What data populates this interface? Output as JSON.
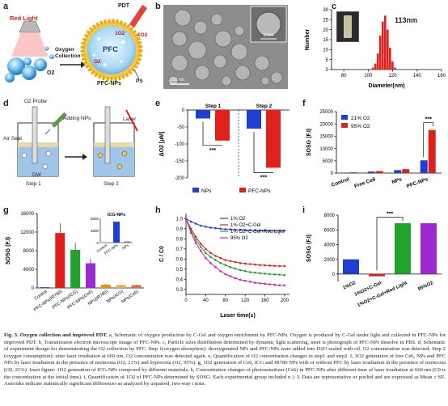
{
  "panels": {
    "a": {
      "letter": "a",
      "red_light": "Red Light",
      "pdt": "PDT",
      "pfc": "PFC",
      "o2": "O2",
      "singlet": "1O2",
      "oxygen_collection": "Oxygen\nCollection",
      "ps": "PS",
      "name": "PFC-NPs"
    },
    "b": {
      "letter": "b",
      "scale_main": "100 nm",
      "scale_inset": "67nm"
    },
    "c": {
      "letter": "c",
      "annotation": "113nm"
    },
    "d": {
      "letter": "d",
      "o2_probe": "O2 Probe",
      "adding_nps": "Adding NPs",
      "laser": "Laser",
      "air_seal": "Air Seal",
      "dw": "DW",
      "step1": "Step 1",
      "step2": "Step 2"
    },
    "e": {
      "letter": "e",
      "sig": "***"
    },
    "f": {
      "letter": "f",
      "sig": "***"
    },
    "g": {
      "letter": "g",
      "inset_title": "ICG-NPs"
    },
    "h": {
      "letter": "h"
    },
    "i": {
      "letter": "i",
      "sig": "***"
    }
  },
  "colors": {
    "blue": "#1f3fd4",
    "red": "#e0201b",
    "green": "#1fa32a",
    "purple": "#9b2bd0",
    "orange": "#f08a1c",
    "magenta": "#d11fb0"
  },
  "chart_data": [
    {
      "id": "c",
      "type": "bar",
      "xlabel": "Diameter(nm)",
      "ylabel": "Number",
      "xlim": [
        70,
        160
      ],
      "ylim": [
        0,
        30
      ],
      "xticks": [
        80,
        100,
        120,
        140,
        160
      ],
      "yticks": [
        0,
        5,
        10,
        15,
        20,
        25,
        30
      ],
      "x": [
        104,
        106,
        108,
        110,
        112,
        114,
        116,
        118,
        120,
        122
      ],
      "values": [
        1,
        3,
        8,
        17,
        24,
        27,
        20,
        11,
        4,
        1
      ]
    },
    {
      "id": "e",
      "type": "bar",
      "ylabel": "ΔO2 [µM]",
      "groups": [
        "Step 1",
        "Step 2"
      ],
      "ylim": [
        -200,
        0
      ],
      "yticks": [
        -200,
        -150,
        -100,
        -50,
        0
      ],
      "series": [
        {
          "name": "NPs",
          "values": [
            -25,
            -55
          ]
        },
        {
          "name": "PFC-NPs",
          "values": [
            -90,
            -170
          ]
        }
      ]
    },
    {
      "id": "f",
      "type": "bar",
      "ylabel": "SOSG (F.I)",
      "categories": [
        "Control",
        "Free Ce6",
        "NPs",
        "PFC-NPs"
      ],
      "ylim": [
        0,
        25000
      ],
      "yticks": [
        0,
        5000,
        10000,
        15000,
        20000,
        25000
      ],
      "series": [
        {
          "name": "21% O2",
          "values": [
            200,
            600,
            1200,
            5200
          ]
        },
        {
          "name": "95% O2",
          "values": [
            300,
            800,
            1600,
            17500
          ]
        }
      ]
    },
    {
      "id": "g",
      "type": "bar",
      "ylabel": "SOSG (F.I)",
      "categories": [
        "Control",
        "PFC-NPs(IR780)",
        "PFC-NPs(ICG)",
        "PFC-NPs(Ce6)",
        "NPs(IR780)",
        "NPs(ICG)",
        "NPs(Ce6)"
      ],
      "values": [
        150,
        11800,
        8200,
        5300,
        700,
        600,
        600
      ],
      "ylim": [
        0,
        16000
      ],
      "yticks": [
        0,
        4000,
        8000,
        12000,
        16000
      ]
    },
    {
      "id": "g_inset",
      "type": "bar",
      "title": "ICG-NPs",
      "categories": [
        "Control",
        "PFC-NPs",
        "NPs"
      ],
      "values": [
        100,
        6900,
        400
      ],
      "ylim": [
        0,
        8000
      ],
      "yticks": [
        0,
        4000,
        8000
      ]
    },
    {
      "id": "h",
      "type": "line",
      "xlabel": "Laser time(s)",
      "ylabel": "C / C0",
      "xlim": [
        0,
        210
      ],
      "ylim": [
        0.25,
        1.05
      ],
      "xticks": [
        0,
        40,
        80,
        120,
        160,
        200
      ],
      "yticks": [
        0.3,
        0.4,
        0.5,
        0.6,
        0.7,
        0.8,
        0.9,
        1.0
      ],
      "x": [
        0,
        10,
        20,
        30,
        40,
        50,
        60,
        70,
        80,
        90,
        100,
        110,
        120,
        130,
        140,
        150,
        160,
        170,
        180,
        190,
        200
      ],
      "series": [
        {
          "name": "1% O2",
          "values": [
            1.0,
            0.97,
            0.95,
            0.93,
            0.92,
            0.91,
            0.905,
            0.9,
            0.895,
            0.893,
            0.89,
            0.888,
            0.886,
            0.885,
            0.884,
            0.883,
            0.882,
            0.881,
            0.88,
            0.88,
            0.88
          ]
        },
        {
          "name": "1% O2+C-Gel",
          "values": [
            1.0,
            0.9,
            0.82,
            0.75,
            0.7,
            0.66,
            0.63,
            0.61,
            0.59,
            0.58,
            0.57,
            0.56,
            0.555,
            0.55,
            0.545,
            0.54,
            0.538,
            0.535,
            0.532,
            0.53,
            0.53
          ]
        },
        {
          "name": "1% O2+C-Gel+Red Light",
          "values": [
            1.0,
            0.88,
            0.79,
            0.72,
            0.66,
            0.62,
            0.59,
            0.56,
            0.54,
            0.52,
            0.505,
            0.49,
            0.48,
            0.47,
            0.465,
            0.46,
            0.455,
            0.45,
            0.448,
            0.445,
            0.44
          ]
        },
        {
          "name": "95% O2",
          "values": [
            1.0,
            0.86,
            0.76,
            0.68,
            0.61,
            0.56,
            0.52,
            0.48,
            0.45,
            0.43,
            0.41,
            0.395,
            0.385,
            0.375,
            0.365,
            0.36,
            0.355,
            0.35,
            0.345,
            0.34,
            0.34
          ]
        }
      ]
    },
    {
      "id": "i",
      "type": "bar",
      "ylabel": "SOSG (F.I)",
      "categories": [
        "1%O2",
        "1%O2+C-Gel",
        "1%O2+C-Gel+Red Light",
        "95%O2"
      ],
      "values": [
        2000,
        -300,
        6900,
        6900
      ],
      "ylim": [
        -1000,
        8000
      ],
      "yticks": [
        0,
        2000,
        4000,
        6000,
        8000
      ]
    }
  ],
  "caption": {
    "lead": "Fig. 3.",
    "title": "Oxygen collection and improved PDT.",
    "body": "a, Schematic of oxygen production by C-Gel and oxygen enrichment by PFC-NPs. Oxygen is produced by C-Gel under light and collected in PFC-NPs for improved PDT. b, Transmission electron microscope image of PFC-NPs. c, Particle sizes distribution determined by dynamic light scattering, inset is photograph of PFC-NPs dissolve in PBS. d, Schematic of experiment design for demonstrating the O2 collection by PFC. Step 1(oxygen absorption): deoxygenated NPs and PFC-NPs were added into H2O sealed with oil, O2 concentration was detected; Step 2 (oxygen consumption): after laser irradiation at 660 nm, O2 concentration was detected again. e, Quantification of O2 concentration changes in step1 and step2. f, 1O2 generation of free Ce6, NPs and PFC NPs by laser irradiation in the presence of normoxia (O2, 21%) and hyperoxia (O2, 95%). g, 1O2 generation of Ce6, ICG and IR780 NPs with or without PFC by laser irradiation in the presence of normoxia (O2, 21%). Inset figure: 1O2 generation of ICG-NPs composed by different materials. h, Concentration changes of photosensitizer (Ce6) in PFC-NPs after different time of laser irradiation at 660 nm (C0 is the concentration at the initial time). i, Quantification of 1O2 of PFC-NPs determined by SOSG. Each experimental group included n ≥ 3. Data are representative or pooled and are expressed as Mean ± SE. Asterisks indicate statistically significant differences as analyzed by unpaired, two-way t tests."
  }
}
